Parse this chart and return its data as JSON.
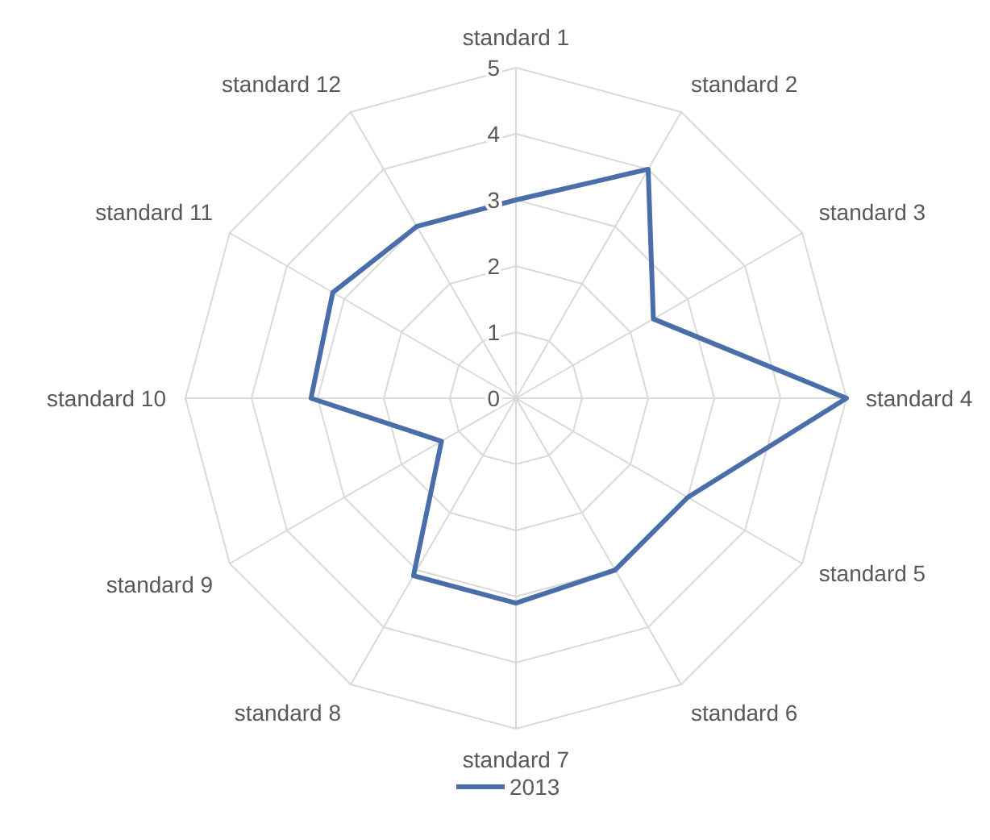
{
  "chart_data": {
    "type": "radar",
    "categories": [
      "standard 1",
      "standard 2",
      "standard 3",
      "standard 4",
      "standard 5",
      "standard 6",
      "standard 7",
      "standard 8",
      "standard 9",
      "standard 10",
      "standard 11",
      "standard 12"
    ],
    "series": [
      {
        "name": "2013",
        "color": "#4a6eaa",
        "values": [
          3,
          4,
          2.4,
          5,
          3,
          3,
          3.1,
          3.1,
          1.3,
          3.1,
          3.2,
          3
        ]
      }
    ],
    "ylim": [
      0,
      5
    ],
    "yticks": [
      0,
      1,
      2,
      3,
      4,
      5
    ],
    "grid": true,
    "legend": "bottom"
  }
}
